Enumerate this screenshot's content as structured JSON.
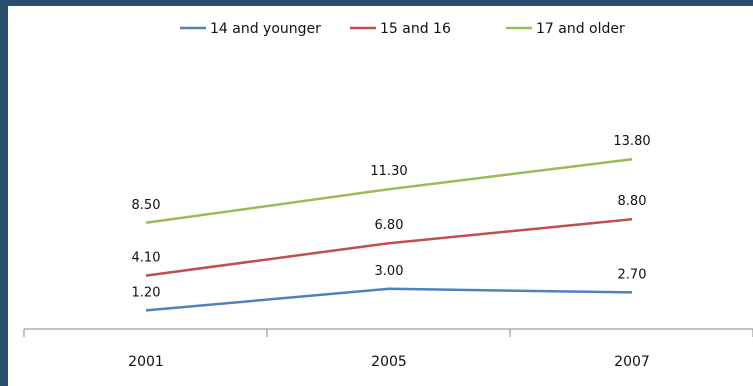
{
  "chart_data": {
    "type": "line",
    "categories": [
      "2001",
      "2005",
      "2007"
    ],
    "series": [
      {
        "name": "14 and younger",
        "values": [
          1.2,
          3.0,
          2.7
        ],
        "color": "#4f81bd",
        "labels": [
          "1.20",
          "3.00",
          "2.70"
        ]
      },
      {
        "name": "15 and 16",
        "values": [
          4.1,
          6.8,
          8.8
        ],
        "color": "#c0504d",
        "labels": [
          "4.10",
          "6.80",
          "8.80"
        ]
      },
      {
        "name": "17 and older",
        "values": [
          8.5,
          11.3,
          13.8
        ],
        "color": "#9bbb59",
        "labels": [
          "8.50",
          "11.30",
          "13.80"
        ]
      }
    ],
    "title": "",
    "xlabel": "",
    "ylabel": "",
    "legend_position": "top",
    "grid": false
  }
}
